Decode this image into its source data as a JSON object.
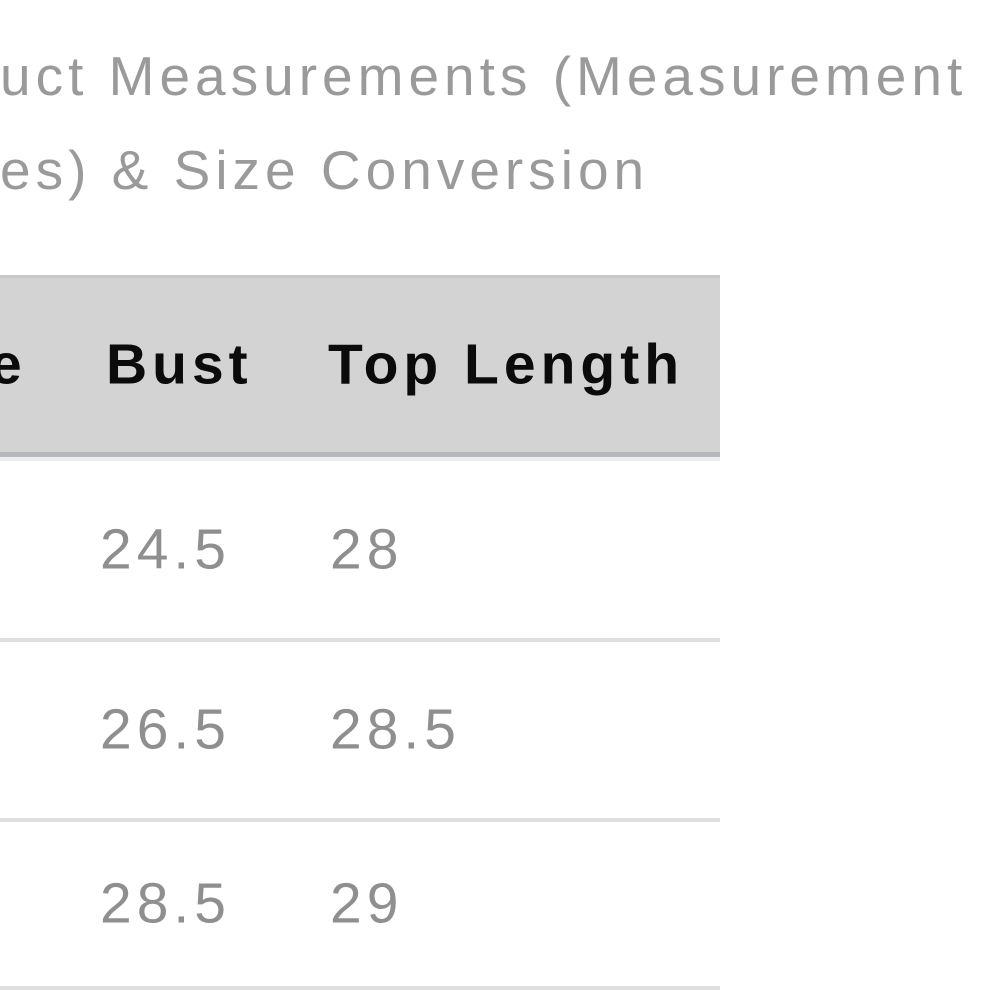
{
  "title": {
    "line1": "uct Measurements (Measurement",
    "line2": "es) & Size Conversion"
  },
  "size_chart": {
    "header": {
      "size_partial": "e",
      "bust": "Bust",
      "top_length": "Top Length"
    },
    "rows": [
      [
        "24.5",
        "28"
      ],
      [
        "26.5",
        "28.5"
      ],
      [
        "28.5",
        "29"
      ]
    ]
  },
  "colors": {
    "title_text": "#9a9a9a",
    "header_background": "#d3d3d3",
    "header_text": "#0b0b0b",
    "header_border_bottom": "#b6b7bb",
    "cell_text": "#8f8f8f",
    "row_divider": "#dfdfdf",
    "page_background": "#ffffff"
  }
}
